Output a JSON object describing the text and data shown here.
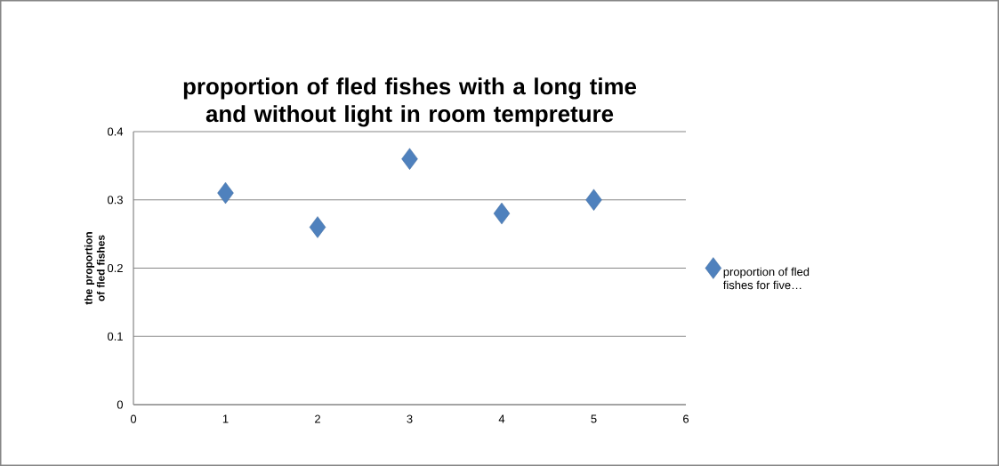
{
  "chart_data": {
    "type": "scatter",
    "title": "proportion of fled fishes with a long time and without light in room tempreture",
    "ylabel": "the proportion of fled fishes",
    "x": [
      1,
      2,
      3,
      4,
      5
    ],
    "series": [
      {
        "name": "proportion of fled fishes for five…",
        "color": "#4f81bd",
        "values": [
          0.31,
          0.26,
          0.36,
          0.28,
          0.3
        ]
      }
    ],
    "xlim": [
      0,
      6
    ],
    "xticks": [
      0,
      1,
      2,
      3,
      4,
      5,
      6
    ],
    "ylim": [
      0,
      0.4
    ],
    "yticks": [
      0,
      0.1,
      0.2,
      0.3,
      0.4
    ],
    "grid": "y",
    "legend": "right",
    "marker": "diamond"
  }
}
